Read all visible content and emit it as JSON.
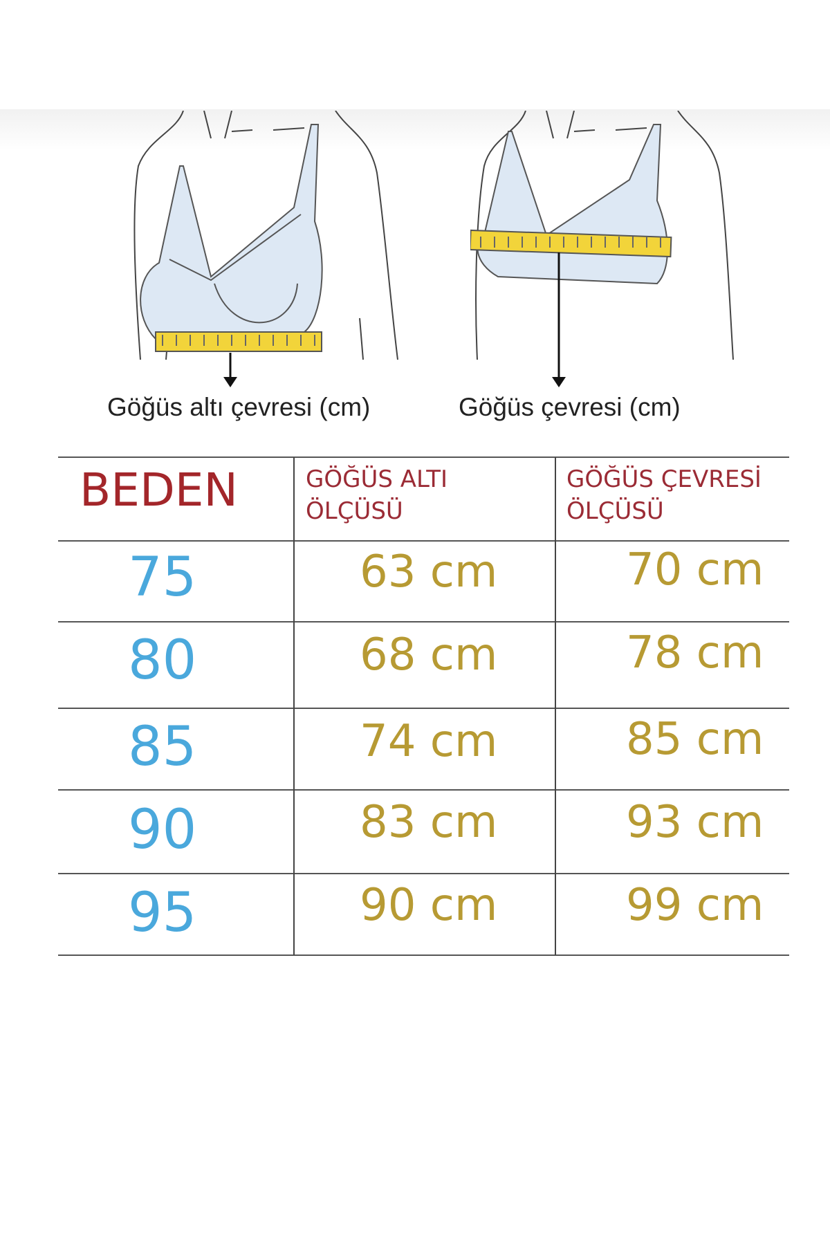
{
  "illustrations": [
    {
      "caption": "Göğüs altı çevresi (cm)",
      "icon": "underbust-measure-illustration"
    },
    {
      "caption": "Göğüs çevresi (cm)",
      "icon": "bust-measure-illustration"
    }
  ],
  "table": {
    "headers": [
      "BEDEN",
      "GÖĞÜS ALTI ÖLÇÜSÜ",
      "GÖĞÜS ÇEVRESİ ÖLÇÜSÜ"
    ],
    "header_lines": [
      [
        "BEDEN"
      ],
      [
        "GÖĞÜS ALTI",
        "ÖLÇÜSÜ"
      ],
      [
        "GÖĞÜS ÇEVRESİ",
        "ÖLÇÜSÜ"
      ]
    ],
    "rows": [
      {
        "size": "75",
        "underbust": "63 cm",
        "bust": "70 cm"
      },
      {
        "size": "80",
        "underbust": "68 cm",
        "bust": "78 cm"
      },
      {
        "size": "85",
        "underbust": "74 cm",
        "bust": "85 cm"
      },
      {
        "size": "90",
        "underbust": "83 cm",
        "bust": "93 cm"
      },
      {
        "size": "95",
        "underbust": "90 cm",
        "bust": "99 cm"
      }
    ]
  },
  "colors": {
    "header": "#a3262a",
    "size": "#4aa8dc",
    "value": "#b79a33",
    "tape": "#f2d43a",
    "garment": "#dde8f4"
  }
}
